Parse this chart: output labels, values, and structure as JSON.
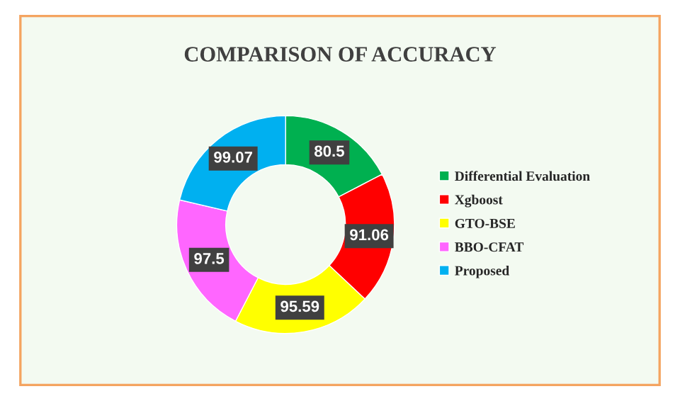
{
  "chart_data": {
    "type": "donut",
    "title": "COMPARISON OF ACCURACY",
    "categories": [
      "Differential Evaluation",
      "Xgboost",
      "GTO-BSE",
      "BBO-CFAT",
      "Proposed"
    ],
    "values": [
      80.5,
      91.06,
      95.59,
      97.5,
      99.07
    ],
    "colors": [
      "#00b050",
      "#ff0000",
      "#ffff00",
      "#ff66ff",
      "#00b0f0"
    ],
    "data_labels": true,
    "legend": "right"
  }
}
